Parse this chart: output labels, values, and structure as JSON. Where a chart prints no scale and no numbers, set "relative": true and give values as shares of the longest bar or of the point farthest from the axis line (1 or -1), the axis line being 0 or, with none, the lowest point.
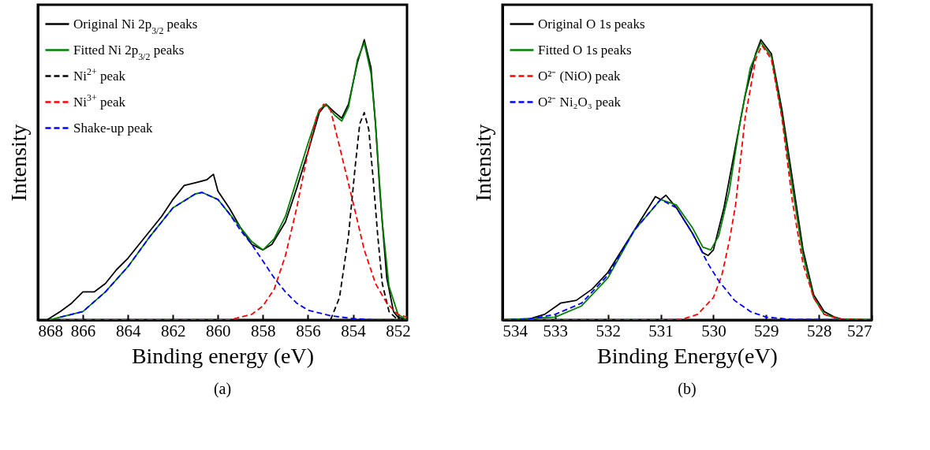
{
  "chart_data": [
    {
      "type": "line",
      "xlabel": "Binding energy (eV)",
      "ylabel": "Intensity",
      "annotations": [
        "(a)"
      ],
      "xlim": [
        868,
        851.6
      ],
      "xticks": [
        868,
        866,
        864,
        862,
        860,
        858,
        856,
        854,
        852
      ],
      "relative": true,
      "legend": "top left",
      "tick_labels": "x",
      "grid": false,
      "series": [
        {
          "name": "Original Ni 2p$_{3/2}$ peaks",
          "color": "#000000",
          "line_style": "solid",
          "x": [
            867.6,
            867,
            866.5,
            866,
            865.5,
            865,
            864.5,
            864,
            863.5,
            863,
            862.5,
            862,
            861.5,
            861,
            860.5,
            860.2,
            860,
            859.5,
            859,
            858.5,
            858,
            857.6,
            857,
            856.5,
            856,
            855.5,
            855.2,
            854.8,
            854.5,
            854.2,
            853.8,
            853.5,
            853.2,
            853,
            852.8,
            852.5,
            852.2,
            852,
            851.6
          ],
          "values": [
            0,
            0.03,
            0.06,
            0.1,
            0.1,
            0.13,
            0.18,
            0.22,
            0.27,
            0.32,
            0.37,
            0.43,
            0.48,
            0.49,
            0.5,
            0.52,
            0.46,
            0.4,
            0.33,
            0.27,
            0.25,
            0.27,
            0.35,
            0.47,
            0.6,
            0.74,
            0.77,
            0.74,
            0.72,
            0.77,
            0.92,
            1,
            0.9,
            0.7,
            0.45,
            0.15,
            0.03,
            0.01,
            0
          ]
        },
        {
          "name": "Fitted Ni 2p$_{3/2}$ peaks",
          "color": "#008000",
          "line_style": "solid",
          "x": [
            867.5,
            867,
            866,
            865,
            864,
            863,
            862,
            861,
            860.7,
            860,
            859.5,
            859,
            858.5,
            858,
            857.5,
            857,
            856.5,
            856,
            855.5,
            855.2,
            854.8,
            854.5,
            854.2,
            853.8,
            853.5,
            853.2,
            853,
            852.7,
            852.4,
            852,
            851.6
          ],
          "values": [
            0,
            0.01,
            0.03,
            0.1,
            0.19,
            0.3,
            0.4,
            0.45,
            0.455,
            0.43,
            0.38,
            0.33,
            0.28,
            0.25,
            0.29,
            0.37,
            0.5,
            0.63,
            0.75,
            0.77,
            0.73,
            0.71,
            0.76,
            0.93,
            0.99,
            0.88,
            0.7,
            0.35,
            0.12,
            0.02,
            0
          ]
        },
        {
          "name": "Ni$^{2+}$ peak",
          "color": "#000000",
          "line_style": "dashed",
          "x": [
            855,
            854.6,
            854.2,
            853.9,
            853.7,
            853.5,
            853.3,
            853.1,
            852.9,
            852.7,
            852.4,
            852,
            851.6
          ],
          "values": [
            0,
            0.08,
            0.3,
            0.55,
            0.7,
            0.74,
            0.68,
            0.5,
            0.3,
            0.13,
            0.03,
            0,
            0
          ]
        },
        {
          "name": "Ni$^{3+}$ peak",
          "color": "#ff0000",
          "line_style": "dashed",
          "x": [
            867,
            859.5,
            858.5,
            858,
            857.5,
            857,
            856.5,
            856,
            855.6,
            855.3,
            855,
            854.6,
            854,
            853.5,
            853,
            852.5,
            852,
            851.6
          ],
          "values": [
            0,
            0,
            0.02,
            0.05,
            0.11,
            0.23,
            0.4,
            0.6,
            0.73,
            0.77,
            0.75,
            0.62,
            0.42,
            0.25,
            0.13,
            0.06,
            0.02,
            0.01
          ]
        },
        {
          "name": "Shake-up peak",
          "color": "#0000ff",
          "line_style": "dashed",
          "x": [
            867,
            866,
            865,
            864,
            863,
            862,
            861,
            860.7,
            860,
            859.5,
            859,
            858.5,
            858,
            857.5,
            857,
            856.5,
            856,
            855,
            854,
            853,
            851.6
          ],
          "values": [
            0.01,
            0.03,
            0.1,
            0.19,
            0.3,
            0.4,
            0.45,
            0.455,
            0.43,
            0.38,
            0.32,
            0.27,
            0.21,
            0.15,
            0.1,
            0.06,
            0.035,
            0.015,
            0.005,
            0,
            0
          ]
        }
      ]
    },
    {
      "type": "line",
      "xlabel": "Binding Energy(eV)",
      "ylabel": "Intensity",
      "annotations": [
        "(b)"
      ],
      "xlim": [
        534,
        527
      ],
      "xticks": [
        534,
        533,
        532,
        531,
        530,
        529,
        528,
        527
      ],
      "relative": true,
      "legend": "top left",
      "tick_labels": "x",
      "grid": false,
      "series": [
        {
          "name": "Original O 1s peaks",
          "color": "#000000",
          "line_style": "solid",
          "x": [
            534,
            533.5,
            533.2,
            532.9,
            532.6,
            532.3,
            532,
            531.7,
            531.4,
            531.1,
            531,
            530.9,
            530.7,
            530.4,
            530.2,
            530.1,
            530,
            529.8,
            529.6,
            529.4,
            529.2,
            529.1,
            528.9,
            528.7,
            528.5,
            528.3,
            528.1,
            527.9,
            527.7,
            527.5,
            527
          ],
          "values": [
            0,
            0.003,
            0.02,
            0.06,
            0.07,
            0.11,
            0.17,
            0.26,
            0.35,
            0.44,
            0.43,
            0.445,
            0.4,
            0.31,
            0.24,
            0.23,
            0.25,
            0.4,
            0.6,
            0.8,
            0.95,
            1,
            0.95,
            0.75,
            0.5,
            0.25,
            0.09,
            0.03,
            0.01,
            0,
            0
          ]
        },
        {
          "name": "Fitted O 1s peaks",
          "color": "#008000",
          "line_style": "solid",
          "x": [
            534,
            533,
            532.5,
            532,
            531.5,
            531,
            530.7,
            530.4,
            530.2,
            530.05,
            529.9,
            529.7,
            529.5,
            529.3,
            529.1,
            528.9,
            528.7,
            528.5,
            528.3,
            528.1,
            527.9,
            527.6,
            527
          ],
          "values": [
            0,
            0.01,
            0.05,
            0.15,
            0.32,
            0.43,
            0.41,
            0.33,
            0.26,
            0.25,
            0.3,
            0.46,
            0.7,
            0.9,
            0.99,
            0.94,
            0.73,
            0.47,
            0.23,
            0.08,
            0.02,
            0.003,
            0
          ]
        },
        {
          "name": "O²⁻ (NiO) peak",
          "color": "#ff0000",
          "line_style": "dashed",
          "x": [
            534,
            531,
            530.6,
            530.3,
            530,
            529.84,
            529.7,
            529.58,
            529.4,
            529.2,
            529.08,
            528.9,
            528.7,
            528.5,
            528.3,
            528.1,
            527.9,
            527.6,
            527
          ],
          "values": [
            0,
            0,
            0.002,
            0.02,
            0.08,
            0.16,
            0.28,
            0.41,
            0.72,
            0.93,
            0.98,
            0.93,
            0.72,
            0.42,
            0.2,
            0.08,
            0.02,
            0.003,
            0
          ]
        },
        {
          "name": "O²⁻ Ni₂O₃ peak",
          "color": "#0000ff",
          "line_style": "dashed",
          "x": [
            534,
            533.5,
            533,
            532.5,
            532,
            531.5,
            531,
            530.7,
            530.4,
            530.1,
            529.9,
            529.6,
            529.3,
            529,
            528.5,
            527
          ],
          "values": [
            0,
            0.003,
            0.02,
            0.06,
            0.16,
            0.32,
            0.43,
            0.4,
            0.31,
            0.2,
            0.14,
            0.07,
            0.03,
            0.01,
            0.002,
            0
          ]
        }
      ]
    }
  ]
}
